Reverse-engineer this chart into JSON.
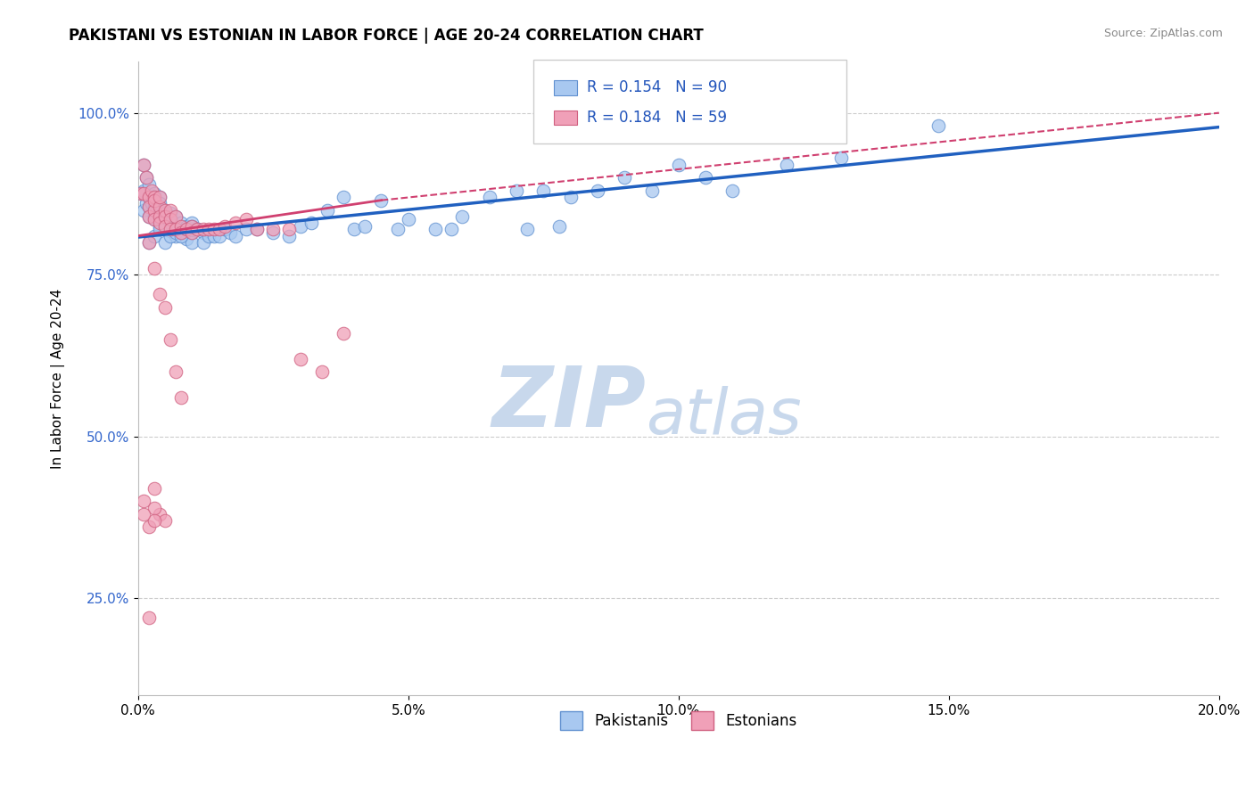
{
  "title": "PAKISTANI VS ESTONIAN IN LABOR FORCE | AGE 20-24 CORRELATION CHART",
  "source_text": "Source: ZipAtlas.com",
  "ylabel": "In Labor Force | Age 20-24",
  "xlim": [
    0.0,
    0.2
  ],
  "ylim": [
    0.1,
    1.08
  ],
  "xticks": [
    0.0,
    0.05,
    0.1,
    0.15,
    0.2
  ],
  "xtick_labels": [
    "0.0%",
    "5.0%",
    "10.0%",
    "15.0%",
    "20.0%"
  ],
  "yticks": [
    0.25,
    0.5,
    0.75,
    1.0
  ],
  "ytick_labels": [
    "25.0%",
    "50.0%",
    "75.0%",
    "100.0%"
  ],
  "pakistani_color": "#a8c8f0",
  "estonian_color": "#f0a0b8",
  "pakistani_edge": "#6090d0",
  "estonian_edge": "#d06080",
  "trend_blue": "#2060c0",
  "trend_pink": "#d04070",
  "legend_R_blue": "0.154",
  "legend_N_blue": "90",
  "legend_R_pink": "0.184",
  "legend_N_pink": "59",
  "watermark_top": "ZIP",
  "watermark_bot": "atlas",
  "watermark_color": "#c8d8ec",
  "pakistani_x": [
    0.0005,
    0.001,
    0.001,
    0.001,
    0.0015,
    0.0015,
    0.002,
    0.002,
    0.002,
    0.002,
    0.0025,
    0.003,
    0.003,
    0.003,
    0.003,
    0.003,
    0.0035,
    0.004,
    0.004,
    0.004,
    0.004,
    0.004,
    0.005,
    0.005,
    0.005,
    0.005,
    0.006,
    0.006,
    0.006,
    0.006,
    0.007,
    0.007,
    0.007,
    0.008,
    0.008,
    0.009,
    0.009,
    0.01,
    0.01,
    0.01,
    0.011,
    0.012,
    0.012,
    0.013,
    0.014,
    0.015,
    0.016,
    0.017,
    0.018,
    0.02,
    0.022,
    0.025,
    0.028,
    0.03,
    0.032,
    0.035,
    0.038,
    0.04,
    0.042,
    0.045,
    0.048,
    0.05,
    0.055,
    0.058,
    0.06,
    0.065,
    0.07,
    0.072,
    0.075,
    0.078,
    0.08,
    0.085,
    0.09,
    0.095,
    0.1,
    0.105,
    0.11,
    0.12,
    0.13,
    0.148,
    0.002,
    0.003,
    0.004,
    0.005,
    0.006,
    0.007,
    0.008,
    0.009,
    0.01,
    0.011
  ],
  "pakistani_y": [
    0.875,
    0.92,
    0.88,
    0.85,
    0.9,
    0.86,
    0.87,
    0.855,
    0.84,
    0.89,
    0.86,
    0.875,
    0.855,
    0.84,
    0.87,
    0.835,
    0.85,
    0.87,
    0.845,
    0.86,
    0.84,
    0.825,
    0.85,
    0.83,
    0.845,
    0.82,
    0.845,
    0.83,
    0.82,
    0.84,
    0.84,
    0.82,
    0.81,
    0.83,
    0.815,
    0.825,
    0.805,
    0.83,
    0.815,
    0.8,
    0.82,
    0.815,
    0.8,
    0.81,
    0.81,
    0.81,
    0.82,
    0.815,
    0.81,
    0.82,
    0.82,
    0.815,
    0.81,
    0.825,
    0.83,
    0.85,
    0.87,
    0.82,
    0.825,
    0.865,
    0.82,
    0.835,
    0.82,
    0.82,
    0.84,
    0.87,
    0.88,
    0.82,
    0.88,
    0.825,
    0.87,
    0.88,
    0.9,
    0.88,
    0.92,
    0.9,
    0.88,
    0.92,
    0.93,
    0.98,
    0.8,
    0.81,
    0.82,
    0.8,
    0.81,
    0.815,
    0.81,
    0.82,
    0.825,
    0.82
  ],
  "estonian_x": [
    0.0005,
    0.001,
    0.001,
    0.0015,
    0.002,
    0.002,
    0.002,
    0.0025,
    0.003,
    0.003,
    0.003,
    0.003,
    0.004,
    0.004,
    0.004,
    0.004,
    0.005,
    0.005,
    0.005,
    0.006,
    0.006,
    0.006,
    0.007,
    0.007,
    0.008,
    0.008,
    0.009,
    0.01,
    0.01,
    0.011,
    0.012,
    0.013,
    0.014,
    0.015,
    0.016,
    0.018,
    0.02,
    0.022,
    0.025,
    0.028,
    0.03,
    0.034,
    0.038,
    0.002,
    0.003,
    0.004,
    0.005,
    0.006,
    0.007,
    0.008,
    0.003,
    0.004,
    0.005,
    0.003,
    0.002,
    0.003,
    0.001,
    0.001,
    0.002
  ],
  "estonian_y": [
    0.875,
    0.92,
    0.875,
    0.9,
    0.87,
    0.855,
    0.84,
    0.88,
    0.87,
    0.85,
    0.835,
    0.865,
    0.855,
    0.84,
    0.87,
    0.83,
    0.85,
    0.84,
    0.825,
    0.85,
    0.835,
    0.82,
    0.84,
    0.82,
    0.825,
    0.815,
    0.82,
    0.825,
    0.815,
    0.82,
    0.82,
    0.82,
    0.82,
    0.82,
    0.825,
    0.83,
    0.835,
    0.82,
    0.82,
    0.82,
    0.62,
    0.6,
    0.66,
    0.8,
    0.76,
    0.72,
    0.7,
    0.65,
    0.6,
    0.56,
    0.42,
    0.38,
    0.37,
    0.39,
    0.36,
    0.37,
    0.38,
    0.4,
    0.22
  ],
  "trend_blue_x0": 0.0,
  "trend_blue_y0": 0.808,
  "trend_blue_x1": 0.2,
  "trend_blue_y1": 0.978,
  "trend_pink_solid_x0": 0.0,
  "trend_pink_solid_y0": 0.81,
  "trend_pink_solid_x1": 0.045,
  "trend_pink_solid_y1": 0.865,
  "trend_pink_dash_x0": 0.045,
  "trend_pink_dash_y0": 0.865,
  "trend_pink_dash_x1": 0.2,
  "trend_pink_dash_y1": 1.0
}
